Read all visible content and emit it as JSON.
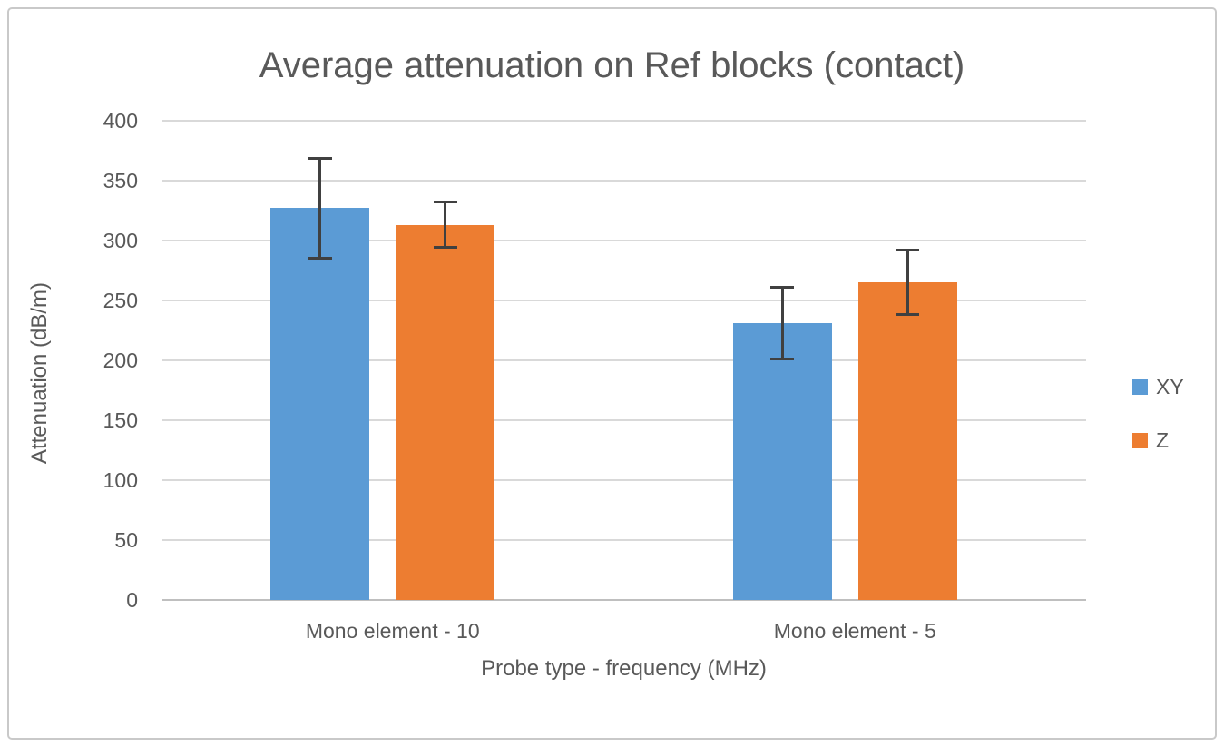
{
  "chart_data": {
    "type": "bar",
    "title": "Average attenuation on Ref blocks (contact)",
    "xlabel": "Probe type - frequency (MHz)",
    "ylabel": "Attenuation (dB/m)",
    "categories": [
      "Mono element - 10",
      "Mono element - 5"
    ],
    "series": [
      {
        "name": "XY",
        "color": "#5B9BD5",
        "values": [
          327,
          231
        ],
        "errors": [
          43,
          31
        ]
      },
      {
        "name": "Z",
        "color": "#ED7D31",
        "values": [
          313,
          265
        ],
        "errors": [
          20,
          28
        ]
      }
    ],
    "ylim": [
      0,
      400
    ],
    "yticks": [
      0,
      50,
      100,
      150,
      200,
      250,
      300,
      350,
      400
    ],
    "grid": true,
    "legend_position": "right",
    "colors": {
      "gridline": "#D9D9D9",
      "axis_line": "#BFBFBF",
      "error_bar": "#404040",
      "text": "#595959",
      "frame_border": "#C9C9C9"
    }
  }
}
